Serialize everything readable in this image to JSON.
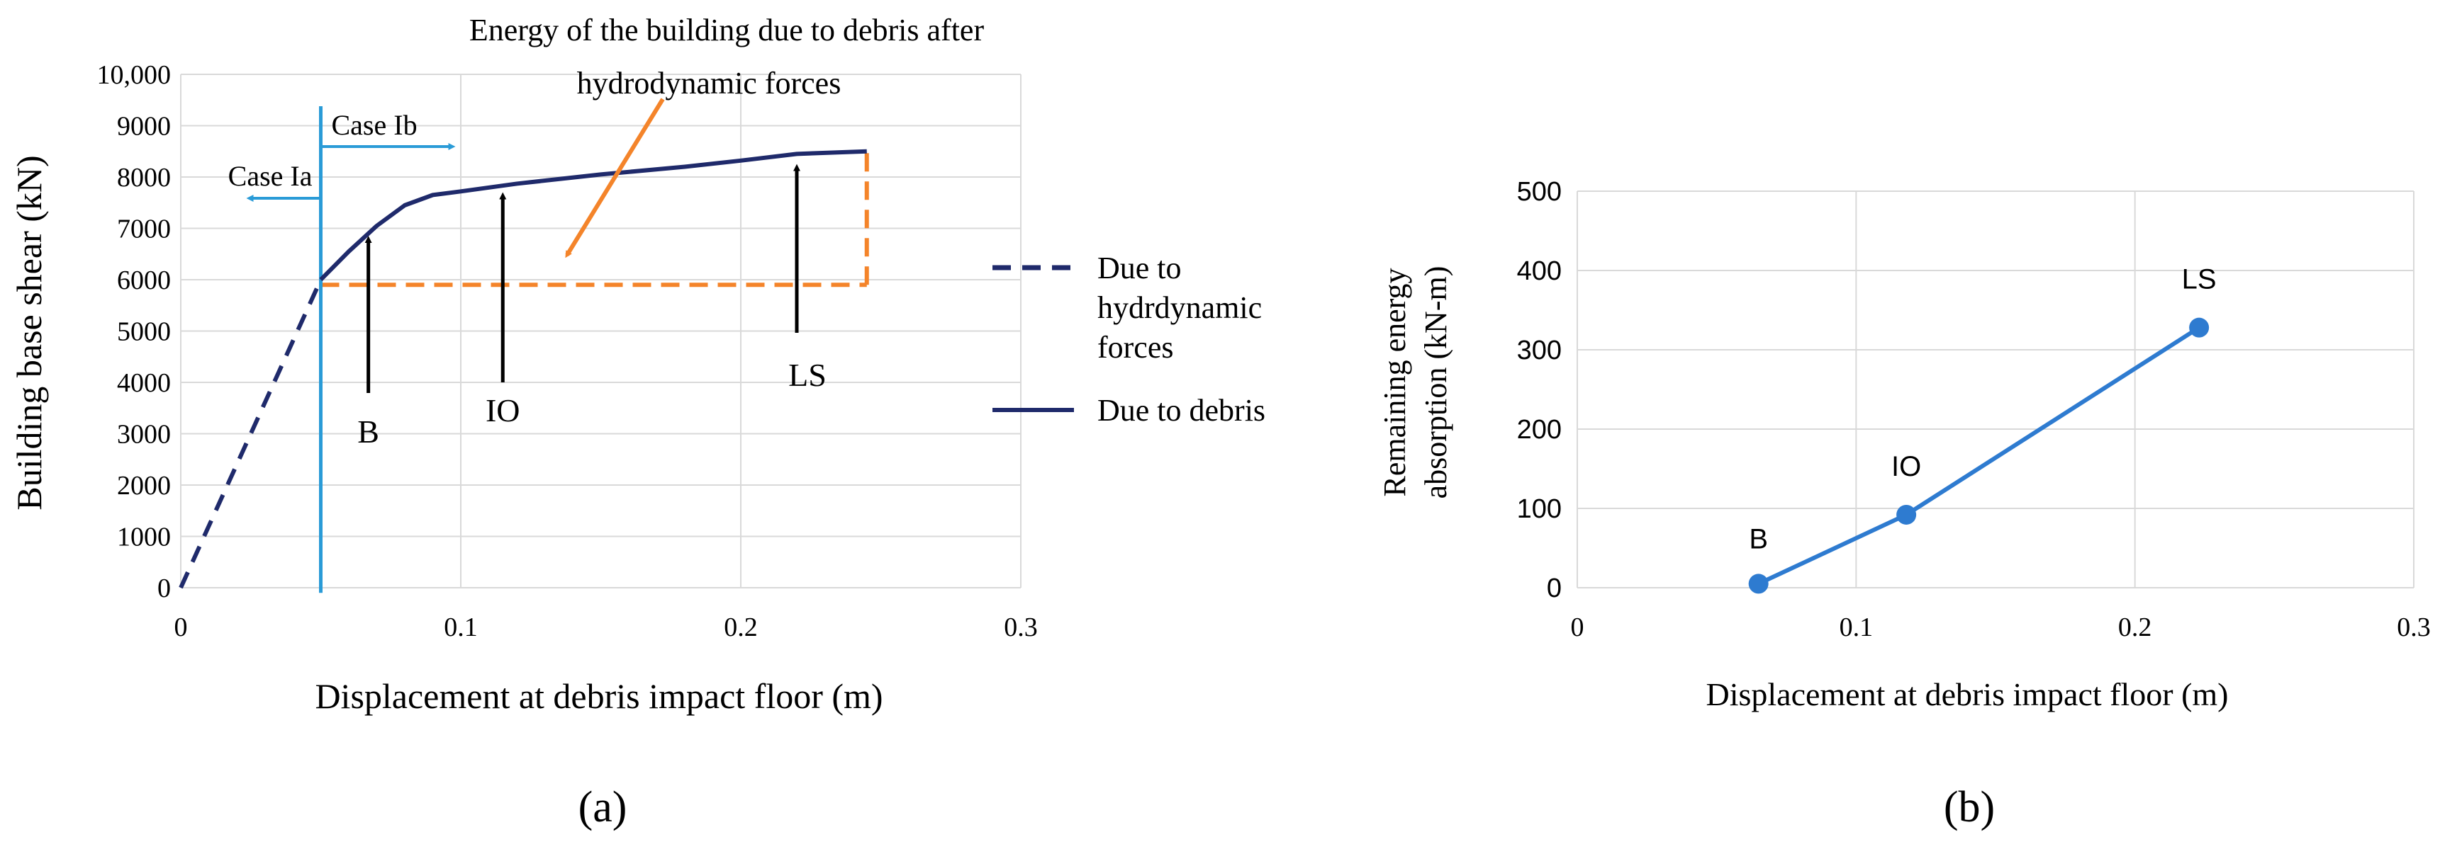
{
  "chart_data": [
    {
      "type": "line",
      "panel_label": "(a)",
      "xlabel": "Displacement at debris impact floor (m)",
      "ylabel": "Building base shear (kN)",
      "xlim": [
        0,
        0.3
      ],
      "ylim": [
        0,
        10000
      ],
      "x_ticks": [
        "0",
        "0.1",
        "0.2",
        "0.3"
      ],
      "y_ticks": [
        "0",
        "1000",
        "2000",
        "3000",
        "4000",
        "5000",
        "6000",
        "7000",
        "8000",
        "9000",
        "10,000"
      ],
      "grid": true,
      "legend_position": "right",
      "series": [
        {
          "name": "Due to hydrdynamic forces",
          "style": "dashed",
          "color": "#1f2a6b",
          "x": [
            0,
            0.05
          ],
          "y": [
            0,
            6000
          ]
        },
        {
          "name": "Due to debris",
          "style": "solid",
          "color": "#1f2a6b",
          "x": [
            0.05,
            0.06,
            0.07,
            0.08,
            0.09,
            0.1,
            0.12,
            0.15,
            0.18,
            0.2,
            0.22,
            0.245
          ],
          "y": [
            6000,
            6550,
            7050,
            7450,
            7650,
            7720,
            7870,
            8050,
            8200,
            8320,
            8450,
            8500
          ]
        }
      ],
      "energy_region": {
        "x": [
          0.05,
          0.245
        ],
        "y": [
          5900,
          8500
        ],
        "color": "#f4842a"
      },
      "case_boundary": {
        "x": 0.05,
        "color": "#2a9bd7"
      },
      "case_labels": [
        "Case Ia",
        "Case Ib"
      ],
      "points": [
        {
          "label": "B",
          "x": 0.067,
          "y": 6950
        },
        {
          "label": "IO",
          "x": 0.115,
          "y": 7800
        },
        {
          "label": "LS",
          "x": 0.22,
          "y": 8350
        }
      ],
      "annotation": {
        "lines": [
          "Energy of the building due to debris after",
          "hydrodynamic forces"
        ]
      }
    },
    {
      "type": "line",
      "panel_label": "(b)",
      "xlabel": "Displacement at debris impact floor (m)",
      "ylabel_lines": [
        "Remaining energy",
        "absorption (kN-m)"
      ],
      "xlim": [
        0,
        0.3
      ],
      "ylim": [
        0,
        500
      ],
      "x_ticks": [
        "0",
        "0.1",
        "0.2",
        "0.3"
      ],
      "y_ticks": [
        "0",
        "100",
        "200",
        "300",
        "400",
        "500"
      ],
      "grid": true,
      "color": "#2e7bd0",
      "points": [
        {
          "label": "B",
          "x": 0.065,
          "y": 5
        },
        {
          "label": "IO",
          "x": 0.118,
          "y": 92
        },
        {
          "label": "LS",
          "x": 0.223,
          "y": 328
        }
      ]
    }
  ]
}
